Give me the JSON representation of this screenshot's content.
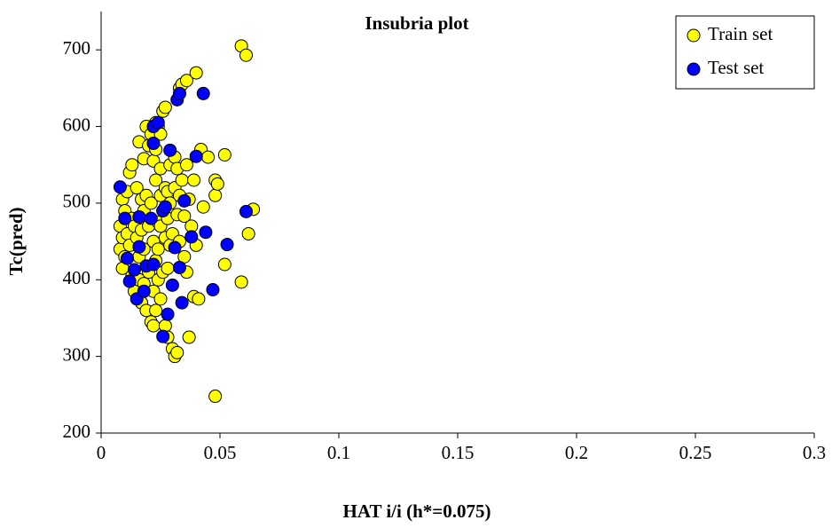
{
  "chart_data": {
    "type": "scatter",
    "title": "Insubria plot",
    "x_label": "HAT i/i (h*=0.075)",
    "y_label": "Tc(pred)",
    "xlim": [
      0,
      0.3
    ],
    "ylim": [
      200,
      750
    ],
    "xticks": [
      0,
      0.05,
      0.1,
      0.15,
      0.2,
      0.25,
      0.3
    ],
    "yticks": [
      200,
      300,
      400,
      500,
      600,
      700
    ],
    "grid": false,
    "legend": "upper right",
    "series": [
      {
        "name": "Train set",
        "color": "#ffff00",
        "x": [
          0.008,
          0.008,
          0.009,
          0.009,
          0.009,
          0.01,
          0.01,
          0.011,
          0.011,
          0.012,
          0.012,
          0.013,
          0.013,
          0.013,
          0.014,
          0.014,
          0.015,
          0.015,
          0.016,
          0.016,
          0.016,
          0.017,
          0.017,
          0.017,
          0.018,
          0.018,
          0.018,
          0.018,
          0.019,
          0.019,
          0.019,
          0.02,
          0.02,
          0.02,
          0.021,
          0.021,
          0.021,
          0.022,
          0.022,
          0.022,
          0.022,
          0.023,
          0.023,
          0.023,
          0.023,
          0.024,
          0.024,
          0.024,
          0.024,
          0.025,
          0.025,
          0.025,
          0.025,
          0.025,
          0.026,
          0.026,
          0.026,
          0.027,
          0.027,
          0.027,
          0.027,
          0.028,
          0.028,
          0.028,
          0.028,
          0.029,
          0.029,
          0.029,
          0.03,
          0.03,
          0.031,
          0.031,
          0.031,
          0.032,
          0.032,
          0.032,
          0.033,
          0.033,
          0.033,
          0.034,
          0.034,
          0.035,
          0.035,
          0.036,
          0.036,
          0.036,
          0.037,
          0.037,
          0.038,
          0.039,
          0.039,
          0.04,
          0.04,
          0.041,
          0.042,
          0.043,
          0.045,
          0.048,
          0.048,
          0.048,
          0.049,
          0.052,
          0.052,
          0.059,
          0.059,
          0.061,
          0.062,
          0.064,
          0.023
        ],
        "values": [
          470,
          440,
          505,
          455,
          415,
          430,
          490,
          515,
          460,
          445,
          540,
          550,
          480,
          405,
          470,
          385,
          520,
          455,
          580,
          430,
          400,
          505,
          465,
          370,
          558,
          490,
          440,
          395,
          600,
          510,
          360,
          575,
          470,
          410,
          345,
          590,
          500,
          340,
          555,
          450,
          385,
          605,
          530,
          425,
          360,
          600,
          475,
          440,
          400,
          590,
          545,
          510,
          470,
          375,
          620,
          490,
          410,
          625,
          520,
          455,
          340,
          515,
          480,
          415,
          325,
          550,
          500,
          445,
          310,
          460,
          300,
          560,
          520,
          545,
          485,
          305,
          650,
          510,
          450,
          655,
          530,
          483,
          430,
          660,
          550,
          410,
          325,
          505,
          470,
          530,
          378,
          670,
          445,
          375,
          570,
          495,
          560,
          530,
          510,
          248,
          525,
          420,
          563,
          397,
          705,
          693,
          460,
          492,
          570
        ]
      },
      {
        "name": "Test set",
        "color": "#0000ff",
        "x": [
          0.008,
          0.01,
          0.011,
          0.012,
          0.014,
          0.015,
          0.016,
          0.016,
          0.018,
          0.019,
          0.021,
          0.022,
          0.022,
          0.022,
          0.024,
          0.026,
          0.026,
          0.027,
          0.028,
          0.029,
          0.03,
          0.031,
          0.032,
          0.033,
          0.033,
          0.034,
          0.035,
          0.038,
          0.04,
          0.043,
          0.044,
          0.047,
          0.053,
          0.061
        ],
        "values": [
          521,
          480,
          428,
          398,
          413,
          375,
          443,
          482,
          385,
          418,
          480,
          420,
          578,
          600,
          605,
          326,
          490,
          495,
          355,
          569,
          393,
          442,
          635,
          643,
          416,
          370,
          503,
          456,
          561,
          643,
          462,
          387,
          446,
          489
        ]
      }
    ]
  }
}
